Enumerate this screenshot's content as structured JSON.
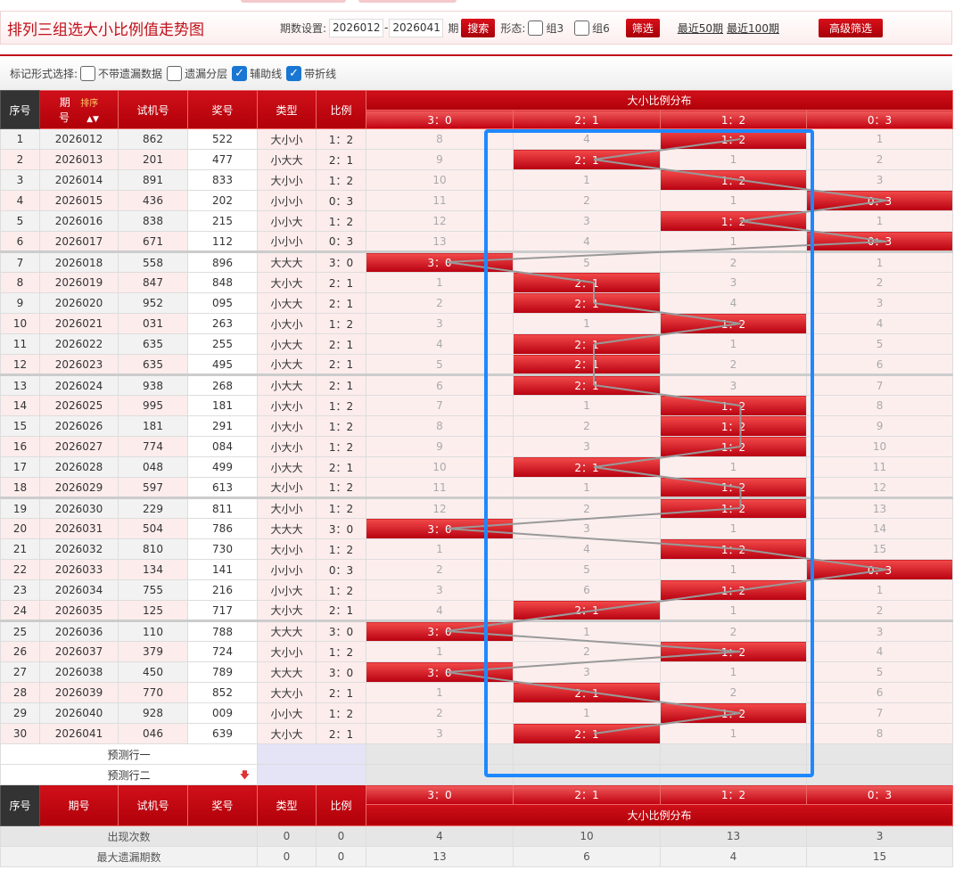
{
  "header": {
    "title": "排列三组选大小比例值走势图",
    "period_label": "期数设置:",
    "period_from": "2026012",
    "period_to": "2026041",
    "period_suffix": "期",
    "search_btn": "搜索",
    "form_label": "形态:",
    "group3": "组3",
    "group6": "组6",
    "filter_btn": "筛选",
    "recent50": "最近50期",
    "recent100": "最近100期",
    "advanced_btn": "高级筛选"
  },
  "options": {
    "label": "标记形式选择:",
    "items": [
      {
        "label": "不带遗漏数据",
        "checked": false
      },
      {
        "label": "遗漏分层",
        "checked": false
      },
      {
        "label": "辅助线",
        "checked": true
      },
      {
        "label": "带折线",
        "checked": true
      }
    ]
  },
  "columns": {
    "seq": "序号",
    "period": "期号",
    "period_top": "期",
    "period_bottom": "号",
    "sort": "排序",
    "trial": "试机号",
    "draw": "奖号",
    "type": "类型",
    "ratio": "比例",
    "dist": "大小比例分布",
    "dist_cols": [
      "3：0",
      "2：1",
      "1：2",
      "0：3"
    ]
  },
  "rows": [
    [
      "1",
      "2026012",
      "862",
      "522",
      "大小小",
      "1：2",
      [
        8,
        4,
        null,
        1
      ]
    ],
    [
      "2",
      "2026013",
      "201",
      "477",
      "小大大",
      "2：1",
      [
        9,
        null,
        1,
        2
      ]
    ],
    [
      "3",
      "2026014",
      "891",
      "833",
      "大小小",
      "1：2",
      [
        10,
        1,
        null,
        3
      ]
    ],
    [
      "4",
      "2026015",
      "436",
      "202",
      "小小小",
      "0：3",
      [
        11,
        2,
        1,
        null
      ]
    ],
    [
      "5",
      "2026016",
      "838",
      "215",
      "小小大",
      "1：2",
      [
        12,
        3,
        null,
        1
      ]
    ],
    [
      "6",
      "2026017",
      "671",
      "112",
      "小小小",
      "0：3",
      [
        13,
        4,
        1,
        null
      ]
    ],
    [
      "7",
      "2026018",
      "558",
      "896",
      "大大大",
      "3：0",
      [
        null,
        5,
        2,
        1
      ]
    ],
    [
      "8",
      "2026019",
      "847",
      "848",
      "大小大",
      "2：1",
      [
        1,
        null,
        3,
        2
      ]
    ],
    [
      "9",
      "2026020",
      "952",
      "095",
      "小大大",
      "2：1",
      [
        2,
        null,
        4,
        3
      ]
    ],
    [
      "10",
      "2026021",
      "031",
      "263",
      "小大小",
      "1：2",
      [
        3,
        1,
        null,
        4
      ]
    ],
    [
      "11",
      "2026022",
      "635",
      "255",
      "小大大",
      "2：1",
      [
        4,
        null,
        1,
        5
      ]
    ],
    [
      "12",
      "2026023",
      "635",
      "495",
      "小大大",
      "2：1",
      [
        5,
        null,
        2,
        6
      ]
    ],
    [
      "13",
      "2026024",
      "938",
      "268",
      "小大大",
      "2：1",
      [
        6,
        null,
        3,
        7
      ]
    ],
    [
      "14",
      "2026025",
      "995",
      "181",
      "小大小",
      "1：2",
      [
        7,
        1,
        null,
        8
      ]
    ],
    [
      "15",
      "2026026",
      "181",
      "291",
      "小大小",
      "1：2",
      [
        8,
        2,
        null,
        9
      ]
    ],
    [
      "16",
      "2026027",
      "774",
      "084",
      "小大小",
      "1：2",
      [
        9,
        3,
        null,
        10
      ]
    ],
    [
      "17",
      "2026028",
      "048",
      "499",
      "小大大",
      "2：1",
      [
        10,
        null,
        1,
        11
      ]
    ],
    [
      "18",
      "2026029",
      "597",
      "613",
      "大小小",
      "1：2",
      [
        11,
        1,
        null,
        12
      ]
    ],
    [
      "19",
      "2026030",
      "229",
      "811",
      "大小小",
      "1：2",
      [
        12,
        2,
        null,
        13
      ]
    ],
    [
      "20",
      "2026031",
      "504",
      "786",
      "大大大",
      "3：0",
      [
        null,
        3,
        1,
        14
      ]
    ],
    [
      "21",
      "2026032",
      "810",
      "730",
      "大小小",
      "1：2",
      [
        1,
        4,
        null,
        15
      ]
    ],
    [
      "22",
      "2026033",
      "134",
      "141",
      "小小小",
      "0：3",
      [
        2,
        5,
        1,
        null
      ]
    ],
    [
      "23",
      "2026034",
      "755",
      "216",
      "小小大",
      "1：2",
      [
        3,
        6,
        null,
        1
      ]
    ],
    [
      "24",
      "2026035",
      "125",
      "717",
      "大小大",
      "2：1",
      [
        4,
        null,
        1,
        2
      ]
    ],
    [
      "25",
      "2026036",
      "110",
      "788",
      "大大大",
      "3：0",
      [
        null,
        1,
        2,
        3
      ]
    ],
    [
      "26",
      "2026037",
      "379",
      "724",
      "大小小",
      "1：2",
      [
        1,
        2,
        null,
        4
      ]
    ],
    [
      "27",
      "2026038",
      "450",
      "789",
      "大大大",
      "3：0",
      [
        null,
        3,
        1,
        5
      ]
    ],
    [
      "28",
      "2026039",
      "770",
      "852",
      "大大小",
      "2：1",
      [
        1,
        null,
        2,
        6
      ]
    ],
    [
      "29",
      "2026040",
      "928",
      "009",
      "小小大",
      "1：2",
      [
        2,
        1,
        null,
        7
      ]
    ],
    [
      "30",
      "2026041",
      "046",
      "639",
      "大小大",
      "2：1",
      [
        3,
        null,
        1,
        8
      ]
    ]
  ],
  "predict": [
    "预测行一",
    "预测行二"
  ],
  "stats": [
    {
      "label": "出现次数",
      "type": "0",
      "ratio": "0",
      "values": [
        "4",
        "10",
        "13",
        "3"
      ]
    },
    {
      "label": "最大遗漏期数",
      "type": "0",
      "ratio": "0",
      "values": [
        "13",
        "6",
        "4",
        "15"
      ]
    }
  ],
  "colors": {
    "accent": "#c0101a",
    "highlight_box": "#1e88ff",
    "trend_line": "#999999"
  }
}
